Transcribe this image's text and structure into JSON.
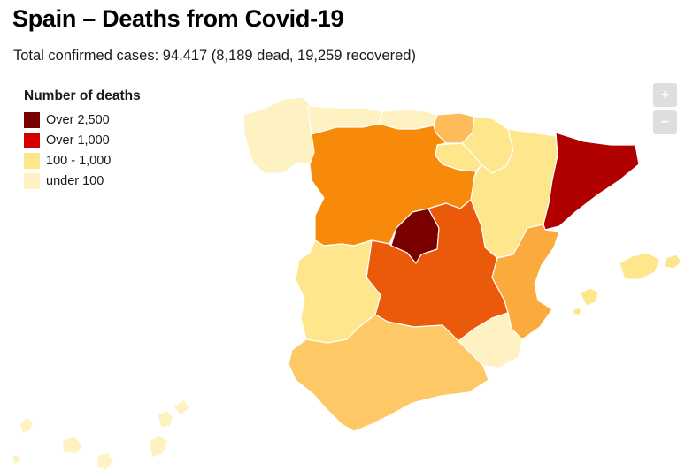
{
  "title": "Spain – Deaths from Covid-19",
  "subtitle": "Total confirmed cases: 94,417 (8,189 dead, 19,259 recovered)",
  "legend": {
    "title": "Number of deaths",
    "items": [
      {
        "label": "Over 2,500",
        "color": "#7a0000"
      },
      {
        "label": "Over 1,000",
        "color": "#d40000"
      },
      {
        "label": "100 - 1,000",
        "color": "#fde68c"
      },
      {
        "label": "under 100",
        "color": "#fef2c2"
      }
    ]
  },
  "zoom": {
    "in_label": "+",
    "out_label": "−"
  },
  "map": {
    "regions": [
      {
        "name": "Galicia",
        "color": "#fef2c2"
      },
      {
        "name": "Asturias",
        "color": "#fef2c2"
      },
      {
        "name": "Cantabria",
        "color": "#fef2c2"
      },
      {
        "name": "País Vasco",
        "color": "#fdbb5a"
      },
      {
        "name": "Navarra",
        "color": "#fde68c"
      },
      {
        "name": "La Rioja",
        "color": "#fde68c"
      },
      {
        "name": "Aragón",
        "color": "#fde68c"
      },
      {
        "name": "Cataluña",
        "color": "#b00000"
      },
      {
        "name": "Castilla y León",
        "color": "#f78a0a"
      },
      {
        "name": "Madrid",
        "color": "#7a0000"
      },
      {
        "name": "Castilla-La Mancha",
        "color": "#eb5a0a"
      },
      {
        "name": "Extremadura",
        "color": "#fde68c"
      },
      {
        "name": "Comunidad Valenciana",
        "color": "#fbab3e"
      },
      {
        "name": "Murcia",
        "color": "#fef2c2"
      },
      {
        "name": "Andalucía",
        "color": "#fdc865"
      },
      {
        "name": "Islas Baleares",
        "color": "#fde68c"
      },
      {
        "name": "Islas Canarias",
        "color": "#fef2c2"
      }
    ]
  }
}
